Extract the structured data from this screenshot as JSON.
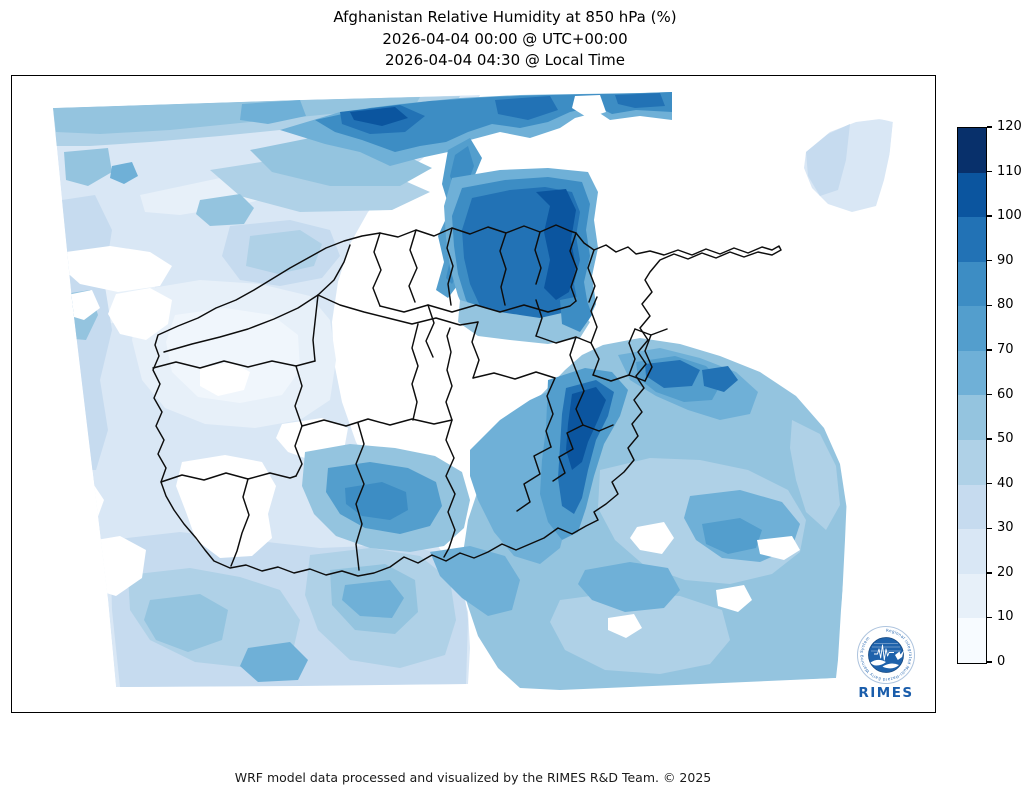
{
  "title": {
    "line1": "Afghanistan Relative Humidity at 850 hPa (%)",
    "line2": "2026-04-04 00:00 @ UTC+00:00",
    "line3": "2026-04-04 04:30 @ Local Time"
  },
  "footer": {
    "credit": "WRF model data processed and visualized by the RIMES R&D Team. © 2025"
  },
  "logo": {
    "name": "RIMES",
    "ring_text": "Regional Integrated Multi-Hazard Early Warning System"
  },
  "chart_data": {
    "type": "heatmap",
    "title": "Afghanistan Relative Humidity at 850 hPa (%)",
    "variable": "Relative Humidity",
    "level": "850 hPa",
    "units": "%",
    "region": "Afghanistan (WRF model domain, province boundaries shown)",
    "valid_time_utc": "2026-04-04 00:00",
    "valid_time_local": "2026-04-04 04:30",
    "colorbar": {
      "min": 0,
      "max": 120,
      "interval": 10,
      "tick_labels": [
        "0",
        "10",
        "20",
        "30",
        "40",
        "50",
        "60",
        "70",
        "80",
        "90",
        "100",
        "110",
        "120"
      ],
      "colors": [
        "#f7fbff",
        "#e7f0f9",
        "#d9e7f5",
        "#c6dbef",
        "#afd1e7",
        "#94c4df",
        "#6fb0d7",
        "#539ecd",
        "#3d8dc4",
        "#2272b5",
        "#0b559f",
        "#08306b"
      ]
    },
    "regions_summary": [
      {
        "area": "northern border strip (north of Afghan provinces)",
        "rh_percent": "70-100"
      },
      {
        "area": "north-central mass south of top band",
        "rh_percent": "80-110"
      },
      {
        "area": "northwest / west (Herat, Badghis, Farah)",
        "rh_percent": "10-40"
      },
      {
        "area": "central highlands and Kabul region",
        "rh_percent": "0-10 (white)"
      },
      {
        "area": "eastern border blob (Kunar / Nuristan)",
        "rh_percent": "70-100"
      },
      {
        "area": "southeast quadrant outside border",
        "rh_percent": "40-70"
      },
      {
        "area": "south-center patch (Kandahar area)",
        "rh_percent": "50-80"
      },
      {
        "area": "southwest (Nimroz, Helmand)",
        "rh_percent": "20-50"
      },
      {
        "area": "top-right corner patch",
        "rh_percent": "20-40"
      }
    ]
  }
}
